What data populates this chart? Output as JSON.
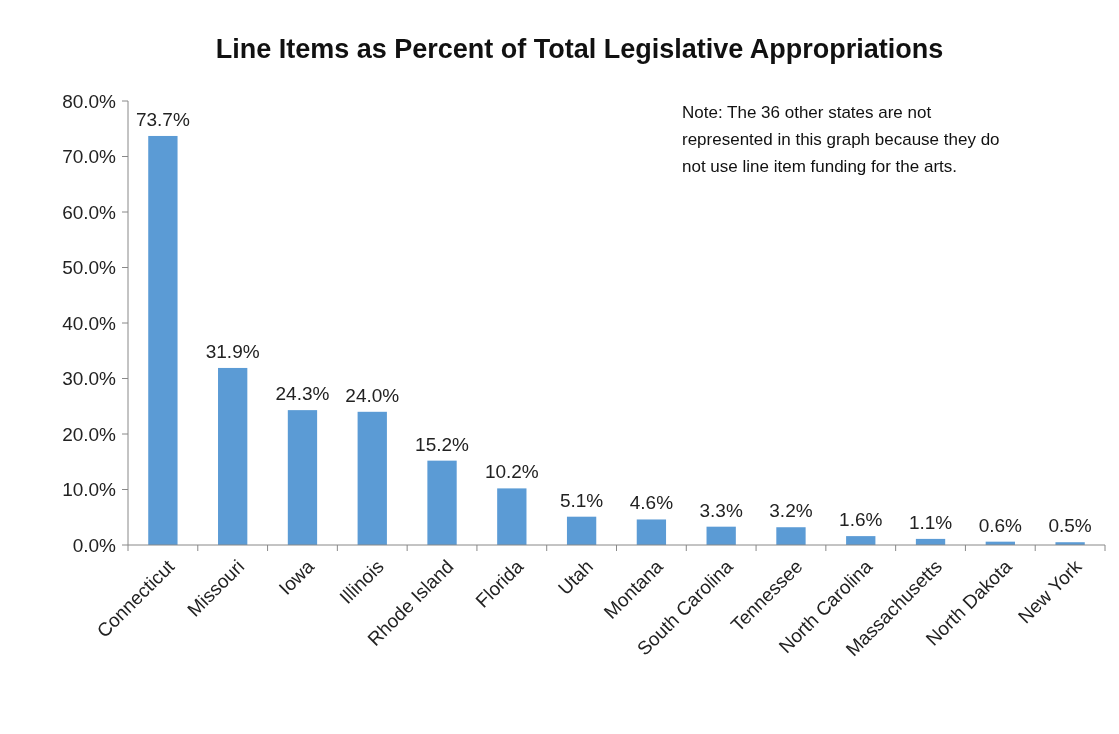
{
  "chart_data": {
    "type": "bar",
    "title": "Line Items as Percent of Total Legislative Appropriations",
    "categories": [
      "Connecticut",
      "Missouri",
      "Iowa",
      "Illinois",
      "Rhode Island",
      "Florida",
      "Utah",
      "Montana",
      "South Carolina",
      "Tennessee",
      "North Carolina",
      "Massachusetts",
      "North Dakota",
      "New York"
    ],
    "values": [
      73.7,
      31.9,
      24.3,
      24.0,
      15.2,
      10.2,
      5.1,
      4.6,
      3.3,
      3.2,
      1.6,
      1.1,
      0.6,
      0.5
    ],
    "value_labels": [
      "73.7%",
      "31.9%",
      "24.3%",
      "24.0%",
      "15.2%",
      "10.2%",
      "5.1%",
      "4.6%",
      "3.3%",
      "3.2%",
      "1.6%",
      "1.1%",
      "0.6%",
      "0.5%"
    ],
    "color": "#5b9bd5",
    "ylim": [
      0,
      80
    ],
    "yticks": [
      {
        "value": 0,
        "label": "0.0%"
      },
      {
        "value": 10,
        "label": "10.0%"
      },
      {
        "value": 20,
        "label": "20.0%"
      },
      {
        "value": 30,
        "label": "30.0%"
      },
      {
        "value": 40,
        "label": "40.0%"
      },
      {
        "value": 50,
        "label": "50.0%"
      },
      {
        "value": 60,
        "label": "60.0%"
      },
      {
        "value": 70,
        "label": "70.0%"
      },
      {
        "value": 80,
        "label": "80.0%"
      }
    ],
    "grid": false,
    "annotations": [
      "Note: The 36 other states are not represented in this graph because they do not use line item funding for the arts."
    ]
  }
}
